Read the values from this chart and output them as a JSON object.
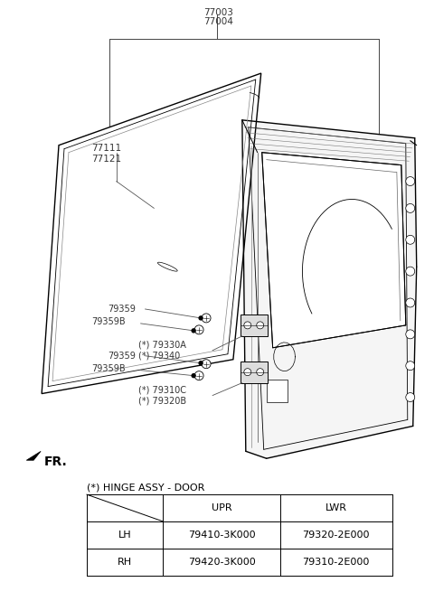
{
  "bg_color": "#ffffff",
  "gray_color": "#555555",
  "dark_color": "#222222",
  "table_title": "(*) HINGE ASSY - DOOR",
  "table_headers": [
    "",
    "UPR",
    "LWR"
  ],
  "table_rows": [
    [
      "LH",
      "79410-3K000",
      "79320-2E000"
    ],
    [
      "RH",
      "79420-3K000",
      "79310-2E000"
    ]
  ],
  "label_77003": "77003",
  "label_77004": "77004",
  "label_77111": "77111",
  "label_77121": "77121",
  "label_79359a": "79359",
  "label_79359Ba": "79359B",
  "label_79330A": "(*) 79330A",
  "label_79340": "(*) 79340",
  "label_79359b": "79359",
  "label_79359Bb": "79359B",
  "label_79310C": "(*) 79310C",
  "label_79320B": "(*) 79320B",
  "fr_label": "FR."
}
